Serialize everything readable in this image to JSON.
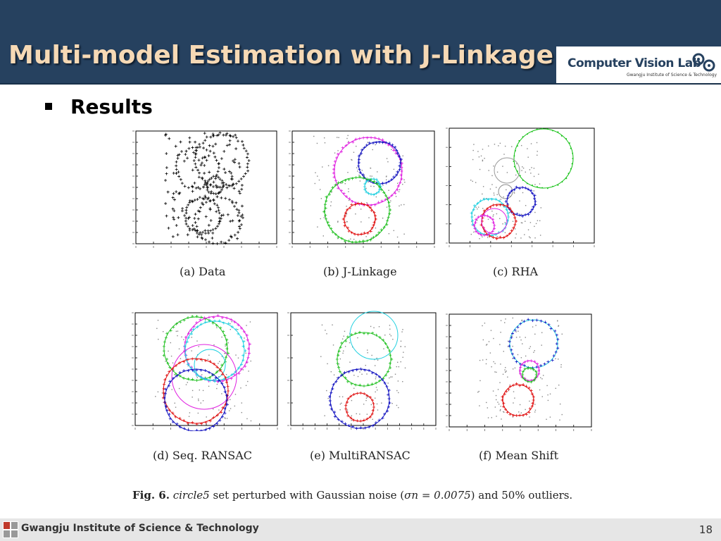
{
  "slide": {
    "title": "Multi-model Estimation with J-Linkage",
    "bullet": "Results",
    "page_number": "18"
  },
  "logo": {
    "name": "Computer Vision Lab",
    "subtitle": "Gwangju Institute of Science & Technology"
  },
  "footer": {
    "institution": "Gwangju Institute of Science & Technology"
  },
  "figure": {
    "panels": [
      {
        "caption": "(a) Data"
      },
      {
        "caption": "(b) J-Linkage"
      },
      {
        "caption": "(c) RHA"
      },
      {
        "caption": "(d) Seq. RANSAC"
      },
      {
        "caption": "(e) MultiRANSAC"
      },
      {
        "caption": "(f) Mean Shift"
      }
    ],
    "caption_label": "Fig. 6.",
    "caption_dataset": "circle5",
    "caption_text": " set perturbed with Gaussian noise (",
    "caption_sigma": "σn = 0.0075",
    "caption_tail": ") and 50% outliers."
  },
  "colors": {
    "header_bg": "#26415f",
    "title_text": "#f6d9b5",
    "footer_bg": "#e6e6e6"
  }
}
